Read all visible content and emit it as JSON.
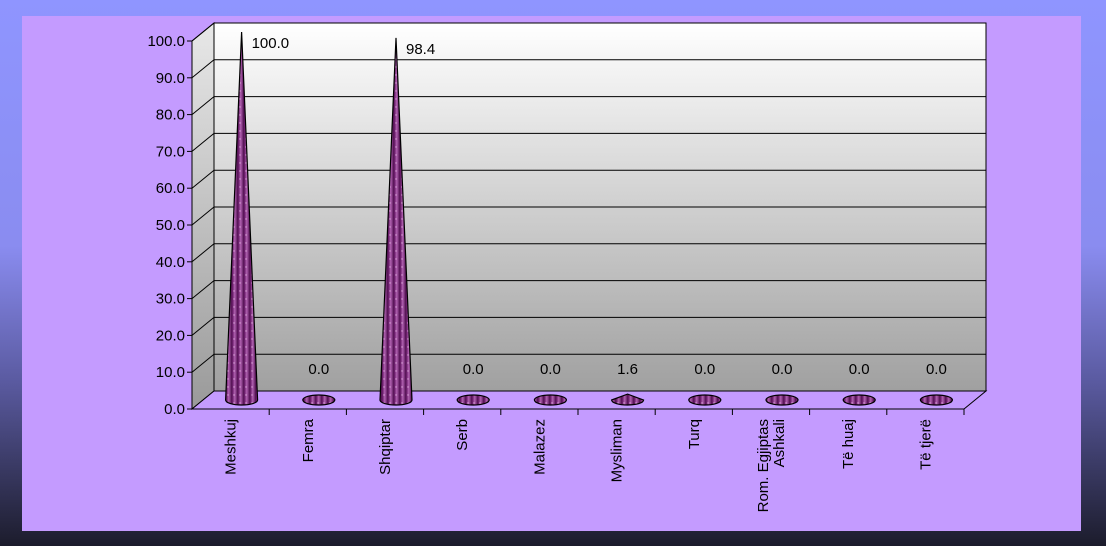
{
  "chart_data": {
    "type": "bar",
    "bar_shape": "cone",
    "categories": [
      "Meshkuj",
      "Femra",
      "Shqiptar",
      "Serb",
      "Malazez",
      "Mysliman",
      "Turq",
      [
        "Rom. Egjiptas",
        "Ashkali"
      ],
      "Të huaj",
      "Të tjerë"
    ],
    "values": [
      100.0,
      0.0,
      98.4,
      0.0,
      0.0,
      1.6,
      0.0,
      0.0,
      0.0,
      0.0
    ],
    "data_labels": [
      "100.0",
      "0.0",
      "98.4",
      "0.0",
      "0.0",
      "1.6",
      "0.0",
      "0.0",
      "0.0",
      "0.0"
    ],
    "ylim": [
      0,
      100
    ],
    "yticks": [
      "0.0",
      "10.0",
      "20.0",
      "30.0",
      "40.0",
      "50.0",
      "60.0",
      "70.0",
      "80.0",
      "90.0",
      "100.0"
    ],
    "grid": true,
    "legend": "none",
    "colors": {
      "bar_fill": "#7a1a7a",
      "bar_highlight": "#b060b0",
      "bar_edge": "#000000",
      "panel_background": "#c49bff",
      "plot_wall_top": "#ffffff",
      "plot_wall_bottom": "#a0a0a0",
      "floor": "#c49bff"
    }
  }
}
